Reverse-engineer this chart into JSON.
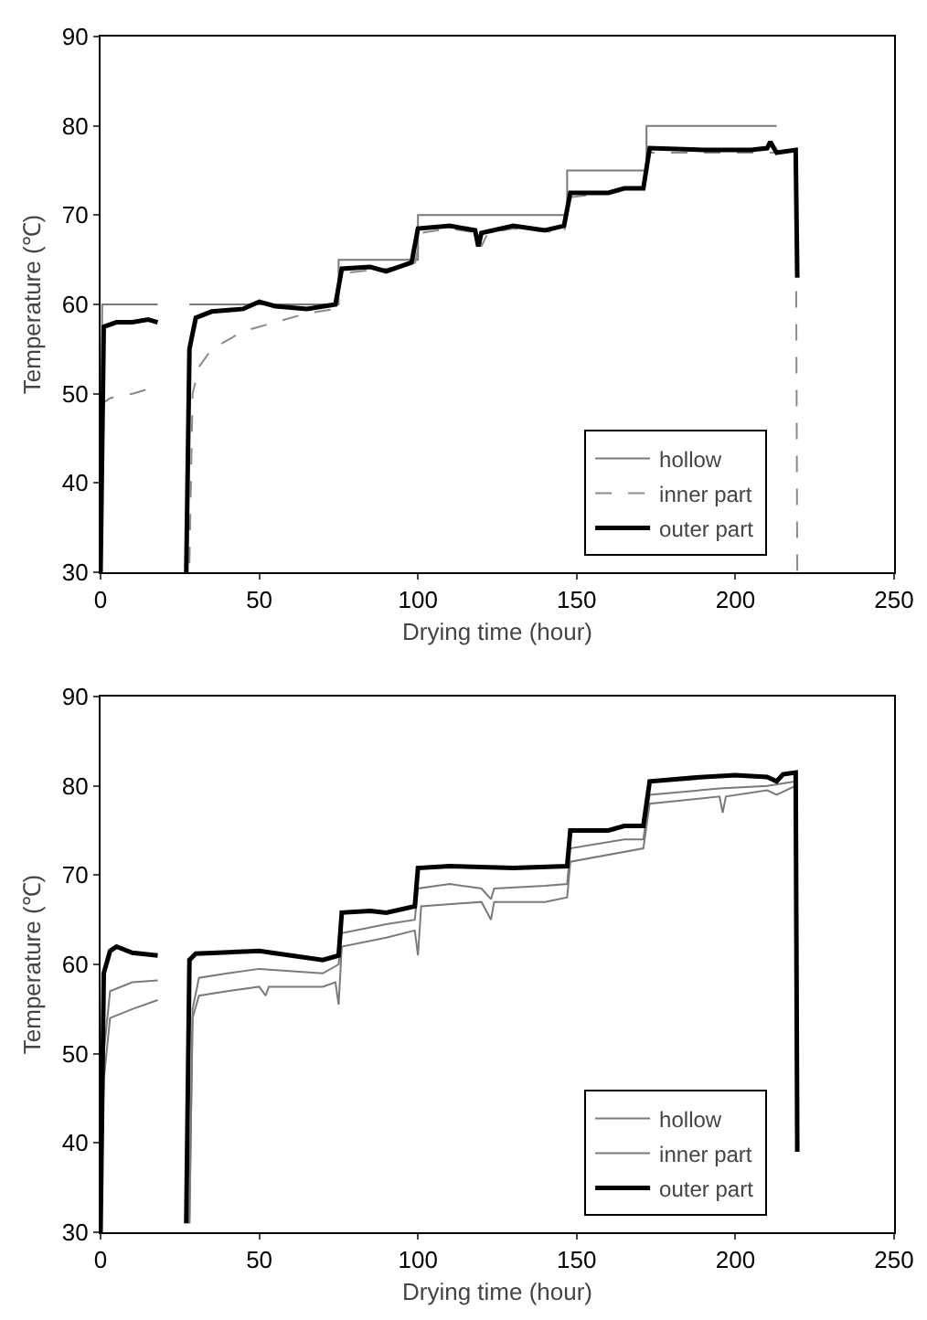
{
  "chart_data": [
    {
      "type": "line",
      "xlabel": "Drying time (hour)",
      "ylabel": "Temperature (℃)",
      "xlim": [
        0,
        250
      ],
      "ylim": [
        30,
        90
      ],
      "xticks": [
        0,
        50,
        100,
        150,
        200,
        250
      ],
      "yticks": [
        30,
        40,
        50,
        60,
        70,
        80,
        90
      ],
      "grid": false,
      "legend": "bottom right",
      "marker": "none",
      "series": [
        {
          "name": "hollow",
          "color": "#7a7a7a",
          "line_style": "solid",
          "x": [
            0,
            0.5,
            18,
            22,
            28,
            75,
            75,
            100,
            100,
            147,
            147,
            172,
            172,
            213
          ],
          "values": [
            30,
            60,
            60,
            null,
            60,
            60,
            65,
            65,
            70,
            70,
            75,
            75,
            80,
            80
          ]
        },
        {
          "name": "inner part",
          "color": "#8a8a8a",
          "line_style": "dashed",
          "x": [
            0,
            1,
            3,
            10,
            15,
            18,
            22,
            28,
            29,
            31,
            35,
            40,
            45,
            50,
            55,
            65,
            74,
            76,
            90,
            99,
            101,
            110,
            119,
            120,
            122,
            130,
            146,
            148,
            160,
            171,
            173,
            185,
            200,
            210,
            219,
            219.5
          ],
          "values": [
            30,
            49,
            49.5,
            50,
            50.5,
            51.5,
            null,
            31,
            50,
            53,
            55,
            56,
            57,
            57.5,
            58,
            59,
            59.5,
            63.5,
            64,
            64.5,
            68,
            68.5,
            68,
            66.5,
            68,
            68.5,
            68,
            72,
            72.5,
            73,
            77,
            77,
            77,
            77,
            77,
            30
          ]
        },
        {
          "name": "outer part",
          "color": "#000000",
          "line_style": "solid",
          "x": [
            0,
            1,
            5,
            10,
            15,
            18,
            22,
            27,
            28,
            30,
            35,
            45,
            50,
            55,
            65,
            74,
            76,
            85,
            90,
            98,
            100,
            110,
            118,
            119,
            120,
            130,
            140,
            146,
            148,
            160,
            165,
            171,
            173,
            190,
            205,
            210,
            211,
            213,
            219,
            219.5
          ],
          "values": [
            30,
            57.5,
            58,
            58,
            58.3,
            58,
            null,
            30,
            55,
            58.5,
            59.2,
            59.5,
            60.3,
            59.8,
            59.5,
            60,
            64,
            64.2,
            63.7,
            64.7,
            68.5,
            68.8,
            68.3,
            66.5,
            68,
            68.8,
            68.3,
            68.8,
            72.5,
            72.5,
            73,
            73,
            77.5,
            77.3,
            77.3,
            77.5,
            78.2,
            77,
            77.3,
            63
          ]
        }
      ]
    },
    {
      "type": "line",
      "xlabel": "Drying time (hour)",
      "ylabel": "Temperature (℃)",
      "xlim": [
        0,
        250
      ],
      "ylim": [
        30,
        90
      ],
      "xticks": [
        0,
        50,
        100,
        150,
        200,
        250
      ],
      "yticks": [
        30,
        40,
        50,
        60,
        70,
        80,
        90
      ],
      "grid": false,
      "legend": "bottom right",
      "marker": "none",
      "series": [
        {
          "name": "hollow",
          "color": "#7a7a7a",
          "line_style": "solid",
          "x": [
            0,
            1,
            3,
            10,
            18,
            22,
            28,
            29,
            31,
            40,
            50,
            52,
            53,
            70,
            74,
            75,
            76,
            90,
            99,
            100,
            101,
            120,
            123,
            124,
            140,
            147,
            148,
            171,
            173,
            195,
            196,
            197,
            210,
            213,
            219
          ],
          "values": [
            30,
            47,
            54,
            55,
            56,
            null,
            31,
            54,
            56.5,
            57,
            57.5,
            56.5,
            57.5,
            57.5,
            58,
            55.5,
            62,
            63,
            63.8,
            61,
            66.5,
            67,
            65,
            67,
            67,
            67.5,
            71.5,
            73,
            78,
            78.8,
            77,
            78.8,
            79.5,
            79,
            80
          ]
        },
        {
          "name": "inner part",
          "color": "#7a7a7a",
          "line_style": "solid",
          "x": [
            0,
            1,
            3,
            10,
            18,
            22,
            28,
            29,
            31,
            40,
            50,
            70,
            75,
            76,
            90,
            99,
            100,
            110,
            120,
            123,
            124,
            140,
            147,
            148,
            165,
            171,
            173,
            195,
            210,
            219
          ],
          "values": [
            30,
            50,
            57,
            58,
            58.2,
            null,
            31,
            55,
            58.5,
            59,
            59.5,
            59,
            60,
            63.5,
            64.5,
            65,
            68.5,
            69,
            68.5,
            67.3,
            68.5,
            68.8,
            69,
            73,
            74,
            74,
            79,
            79.7,
            80,
            80.5
          ]
        },
        {
          "name": "outer part",
          "color": "#000000",
          "line_style": "solid",
          "x": [
            0,
            1,
            3,
            5,
            10,
            18,
            22,
            27,
            28,
            30,
            50,
            60,
            70,
            75,
            76,
            85,
            90,
            99,
            100,
            110,
            130,
            147,
            148,
            160,
            165,
            171,
            173,
            190,
            200,
            210,
            213,
            215,
            219,
            219.5
          ],
          "values": [
            30,
            59,
            61.5,
            62,
            61.3,
            61,
            null,
            31,
            60.5,
            61.2,
            61.5,
            61,
            60.5,
            61,
            65.8,
            66,
            65.8,
            66.5,
            70.8,
            71,
            70.8,
            71,
            75,
            75,
            75.5,
            75.5,
            80.5,
            81,
            81.2,
            81,
            80.5,
            81.3,
            81.5,
            39
          ]
        }
      ]
    }
  ]
}
